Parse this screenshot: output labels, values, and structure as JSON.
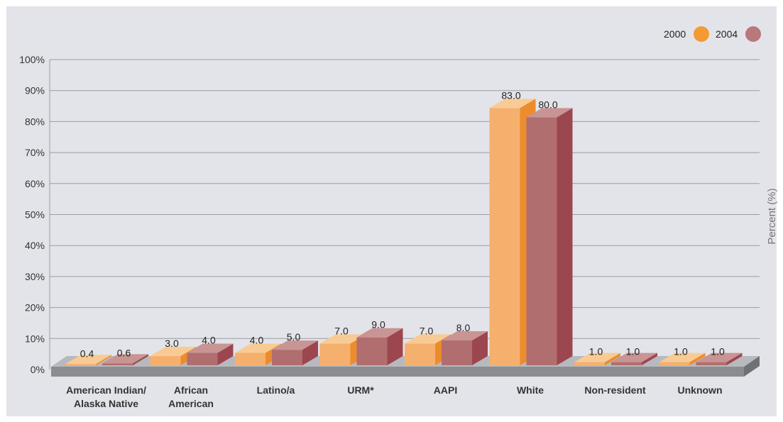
{
  "chart_data": {
    "type": "bar",
    "title": "",
    "xlabel": "",
    "ylabel": "Percent (%)",
    "ylim": [
      0,
      100
    ],
    "yticks": [
      0,
      10,
      20,
      30,
      40,
      50,
      60,
      70,
      80,
      90,
      100
    ],
    "ytick_labels": [
      "0%",
      "10%",
      "20%",
      "30%",
      "40%",
      "50%",
      "60%",
      "70%",
      "80%",
      "90%",
      "100%"
    ],
    "grid": true,
    "legend_position": "top-right",
    "categories": [
      [
        "American Indian/",
        "Alaska Native"
      ],
      [
        "African",
        "American"
      ],
      [
        "Latino/a"
      ],
      [
        "URM*"
      ],
      [
        "AAPI"
      ],
      [
        "White"
      ],
      [
        "Non-resident"
      ],
      [
        "Unknown"
      ]
    ],
    "series": [
      {
        "name": "2000",
        "values": [
          0.4,
          3.0,
          4.0,
          7.0,
          7.0,
          83.0,
          1.0,
          1.0
        ],
        "labels": [
          "0.4",
          "3.0",
          "4.0",
          "7.0",
          "7.0",
          "83.0",
          "1.0",
          "1.0"
        ],
        "color": "#f5b06e",
        "color_side": "#ec8c2c",
        "color_top": "#f9cb94",
        "legend_color": "#f39a34"
      },
      {
        "name": "2004",
        "values": [
          0.6,
          4.0,
          5.0,
          9.0,
          8.0,
          80.0,
          1.0,
          1.0
        ],
        "labels": [
          "0.6",
          "4.0",
          "5.0",
          "9.0",
          "8.0",
          "80.0",
          "1.0",
          "1.0"
        ],
        "color": "#b06e6e",
        "color_side": "#9c4650",
        "color_top": "#c99494",
        "legend_color": "#b8787c"
      }
    ]
  }
}
